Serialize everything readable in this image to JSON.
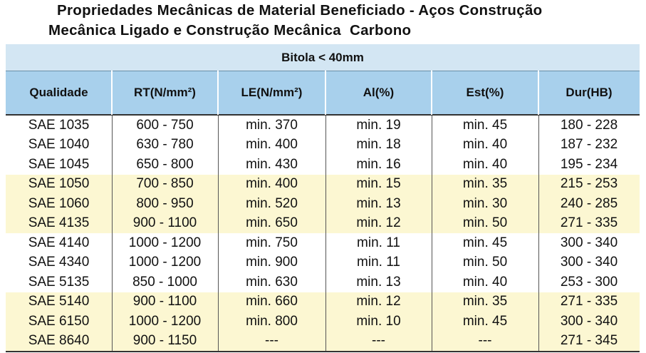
{
  "header": {
    "title_lines": [
      "Propriedades Mecânicas de Material Beneficiado - Aços Construção",
      "Mecânica Ligado e Construção Mecânica  Carbono"
    ]
  },
  "table": {
    "caption": "Bitola < 40mm",
    "columns": [
      "Qualidade",
      "RT(N/mm²)",
      "LE(N/mm²)",
      "Al(%)",
      "Est(%)",
      "Dur(HB)"
    ],
    "rows": [
      [
        "SAE 1035",
        "600 - 750",
        "min. 370",
        "min. 19",
        "min. 45",
        "180 - 228"
      ],
      [
        "SAE 1040",
        "630 - 780",
        "min. 400",
        "min. 18",
        "min. 40",
        "187 - 232"
      ],
      [
        "SAE 1045",
        "650 - 800",
        "min. 430",
        "min. 16",
        "min. 40",
        "195 - 234"
      ],
      [
        "SAE 1050",
        "700 - 850",
        "min. 400",
        "min. 15",
        "min. 35",
        "215 - 253"
      ],
      [
        "SAE 1060",
        "800 - 950",
        "min. 520",
        "min. 13",
        "min. 30",
        "240 - 285"
      ],
      [
        "SAE 4135",
        "900 - 1100",
        "min. 650",
        "min. 12",
        "min. 50",
        "271 - 335"
      ],
      [
        "SAE 4140",
        "1000 - 1200",
        "min. 750",
        "min. 11",
        "min. 45",
        "300 - 340"
      ],
      [
        "SAE 4340",
        "1000 - 1200",
        "min. 900",
        "min. 11",
        "min. 50",
        "300 - 340"
      ],
      [
        "SAE 5135",
        "850 - 1000",
        "min. 630",
        "min. 13",
        "min. 40",
        "253 - 300"
      ],
      [
        "SAE 5140",
        "900 - 1100",
        "min. 660",
        "min. 12",
        "min. 35",
        "271 - 335"
      ],
      [
        "SAE 6150",
        "1000 - 1200",
        "min. 800",
        "min. 10",
        "min. 45",
        "300 - 340"
      ],
      [
        "SAE 8640",
        "900 - 1150",
        "---",
        "---",
        "---",
        "271 - 345"
      ]
    ]
  }
}
